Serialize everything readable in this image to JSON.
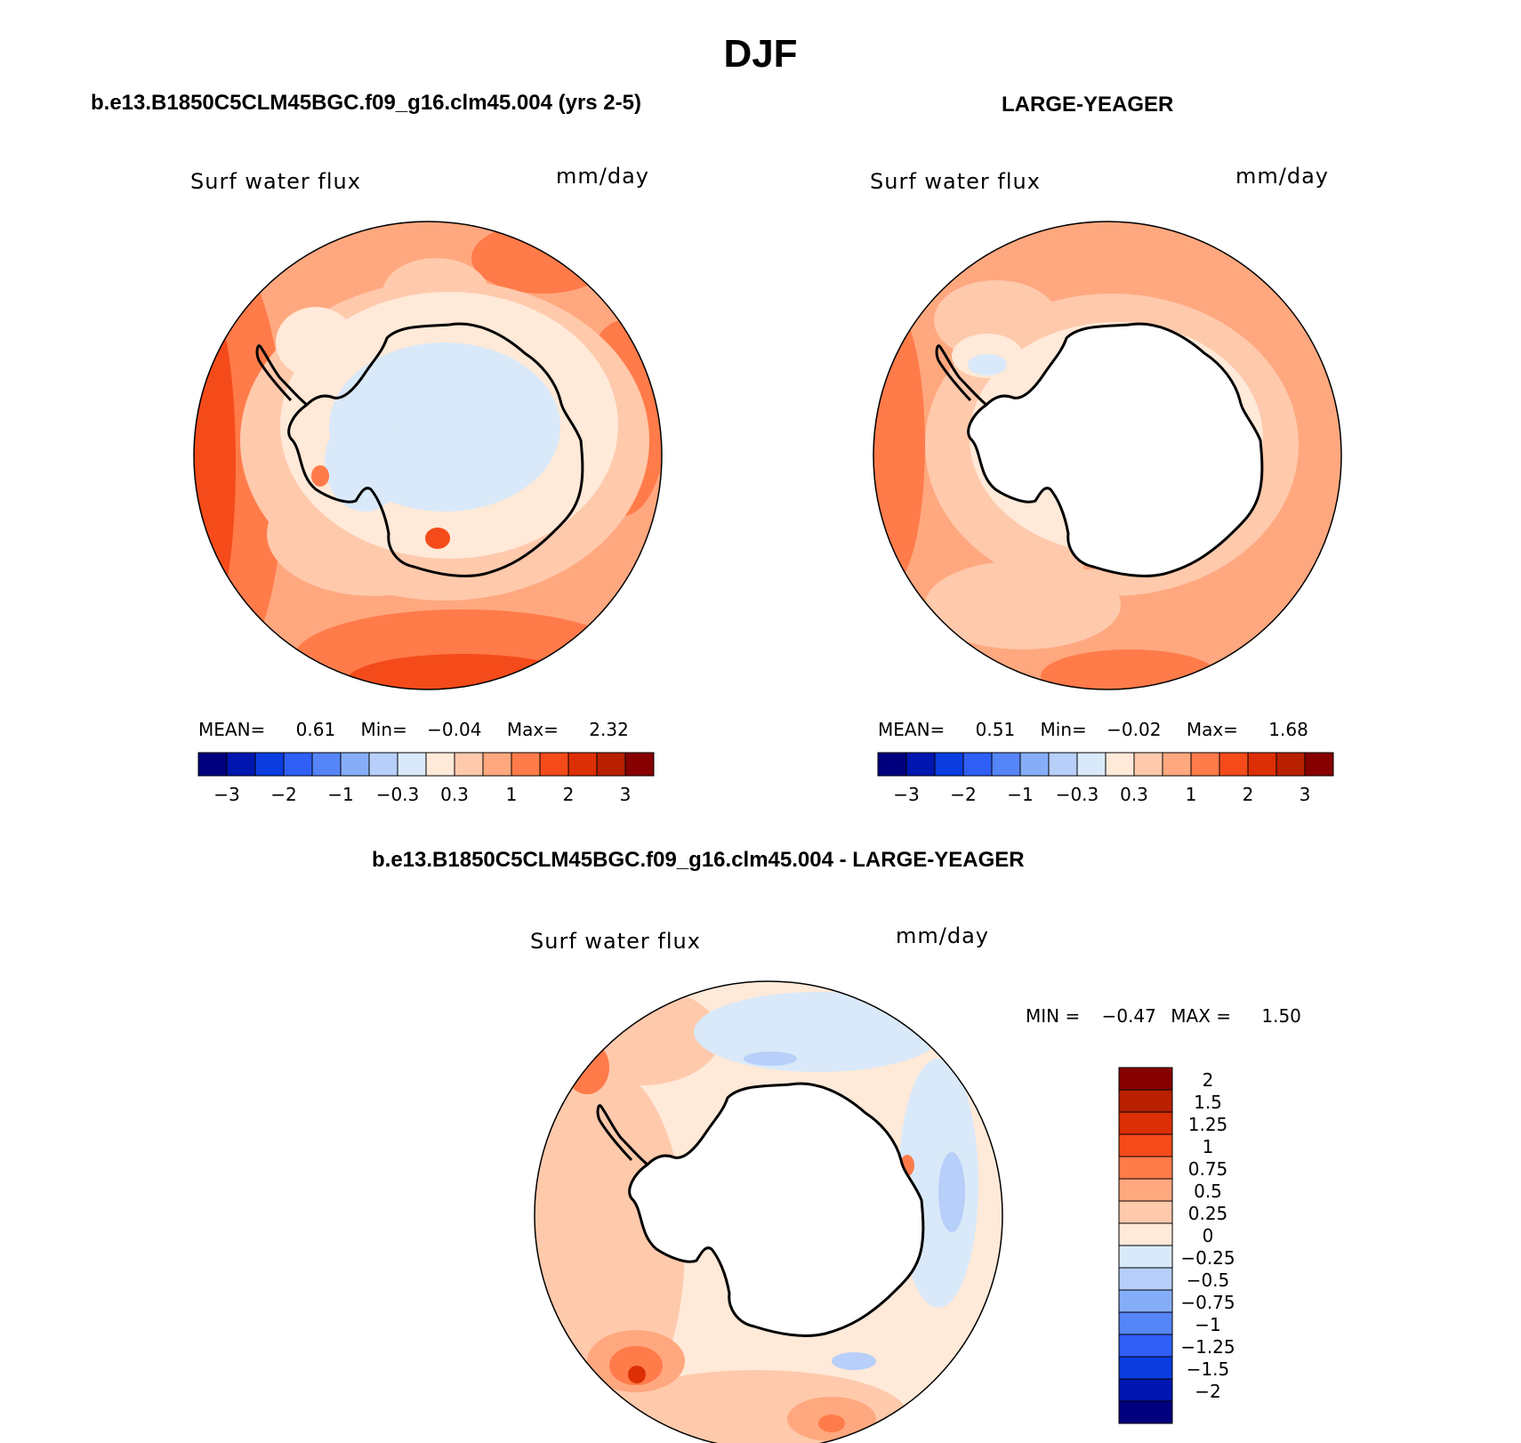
{
  "title": "DJF",
  "panels": [
    {
      "id": "model",
      "heading": "b.e13.B1850C5CLM45BGC.f09_g16.clm45.004 (yrs 2-5)",
      "variable_label": "Surf water flux",
      "units": "mm/day",
      "stats": {
        "mean_label": "MEAN=",
        "mean": "0.61",
        "min_label": "Min=",
        "min": "−0.04",
        "max_label": "Max=",
        "max": "2.32"
      }
    },
    {
      "id": "obs",
      "heading": "LARGE-YEAGER",
      "variable_label": "Surf water flux",
      "units": "mm/day",
      "stats": {
        "mean_label": "MEAN=",
        "mean": "0.51",
        "min_label": "Min=",
        "min": "−0.02",
        "max_label": "Max=",
        "max": "1.68"
      }
    },
    {
      "id": "diff",
      "heading": "b.e13.B1850C5CLM45BGC.f09_g16.clm45.004 - LARGE-YEAGER",
      "variable_label": "Surf water flux",
      "units": "mm/day",
      "stats": {
        "min_label": "MIN =",
        "min": "−0.47",
        "max_label": "MAX =",
        "max": "1.50"
      }
    }
  ],
  "colorbar_abs": {
    "colors": [
      "#00007e",
      "#0016b0",
      "#0a3ce0",
      "#2f5ff7",
      "#5585f7",
      "#86aef8",
      "#b7cff9",
      "#d9e9f9",
      "#ffe9d8",
      "#ffc9ac",
      "#ffa87f",
      "#ff7b4a",
      "#f54b1a",
      "#dc2f05",
      "#b82000",
      "#870000"
    ],
    "tick_labels": [
      "−3",
      "−2",
      "−1",
      "−0.3",
      "0.3",
      "1",
      "2",
      "3"
    ]
  },
  "colorbar_diff": {
    "colors": [
      "#870000",
      "#b82000",
      "#dc2f05",
      "#f54b1a",
      "#ff7b4a",
      "#ffa87f",
      "#ffc9ac",
      "#ffe9d8",
      "#d9e9f9",
      "#b7cff9",
      "#86aef8",
      "#5585f7",
      "#2f5ff7",
      "#0a3ce0",
      "#0016b0",
      "#00007e"
    ],
    "tick_labels": [
      "2",
      "1.5",
      "1.25",
      "1",
      "0.75",
      "0.5",
      "0.25",
      "0",
      "−0.25",
      "−0.5",
      "−0.75",
      "−1",
      "−1.25",
      "−1.5",
      "−2"
    ]
  }
}
